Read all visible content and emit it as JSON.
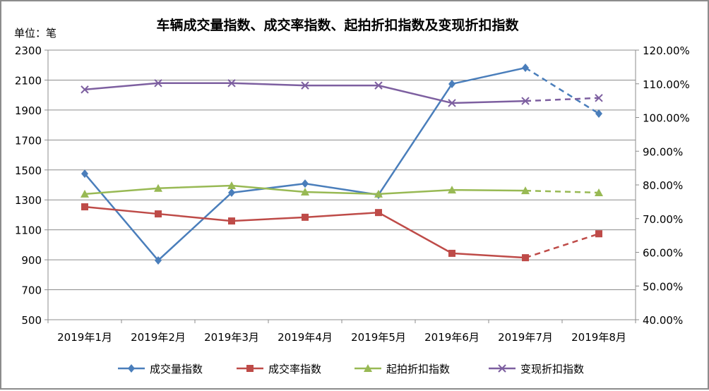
{
  "chart_data": {
    "type": "line",
    "title": "车辆成交量指数、成交率指数、起拍折扣指数及变现折扣指数",
    "unit_label": "单位：笔",
    "categories": [
      "2019年1月",
      "2019年2月",
      "2019年3月",
      "2019年4月",
      "2019年5月",
      "2019年6月",
      "2019年7月",
      "2019年8月"
    ],
    "y_left": {
      "min": 500,
      "max": 2300,
      "ticks": [
        "500",
        "700",
        "900",
        "1100",
        "1300",
        "1500",
        "1700",
        "1900",
        "2100",
        "2300"
      ]
    },
    "y_right": {
      "min": 40,
      "max": 120,
      "ticks": [
        "40.00%",
        "50.00%",
        "60.00%",
        "70.00%",
        "80.00%",
        "90.00%",
        "100.00%",
        "110.00%",
        "120.00%"
      ]
    },
    "grid": true,
    "legend_position": "bottom",
    "dashed_last_segment": true,
    "series": [
      {
        "name": "成交量指数",
        "axis": "left",
        "color": "#4a7ebb",
        "marker": "diamond",
        "values": [
          1475,
          896,
          1348,
          1409,
          1334,
          2074,
          2182,
          1876
        ]
      },
      {
        "name": "成交率指数",
        "axis": "right",
        "color": "#be4b48",
        "marker": "square",
        "values": [
          73.5,
          71.4,
          69.3,
          70.4,
          71.8,
          59.7,
          58.4,
          65.5
        ]
      },
      {
        "name": "起拍折扣指数",
        "axis": "right",
        "color": "#98b954",
        "marker": "triangle",
        "values": [
          77.3,
          79.0,
          79.8,
          77.9,
          77.3,
          78.5,
          78.3,
          77.7
        ]
      },
      {
        "name": "变现折扣指数",
        "axis": "right",
        "color": "#7d5fa0",
        "marker": "x",
        "values": [
          108.3,
          110.2,
          110.2,
          109.5,
          109.5,
          104.3,
          104.9,
          105.8
        ]
      }
    ]
  }
}
